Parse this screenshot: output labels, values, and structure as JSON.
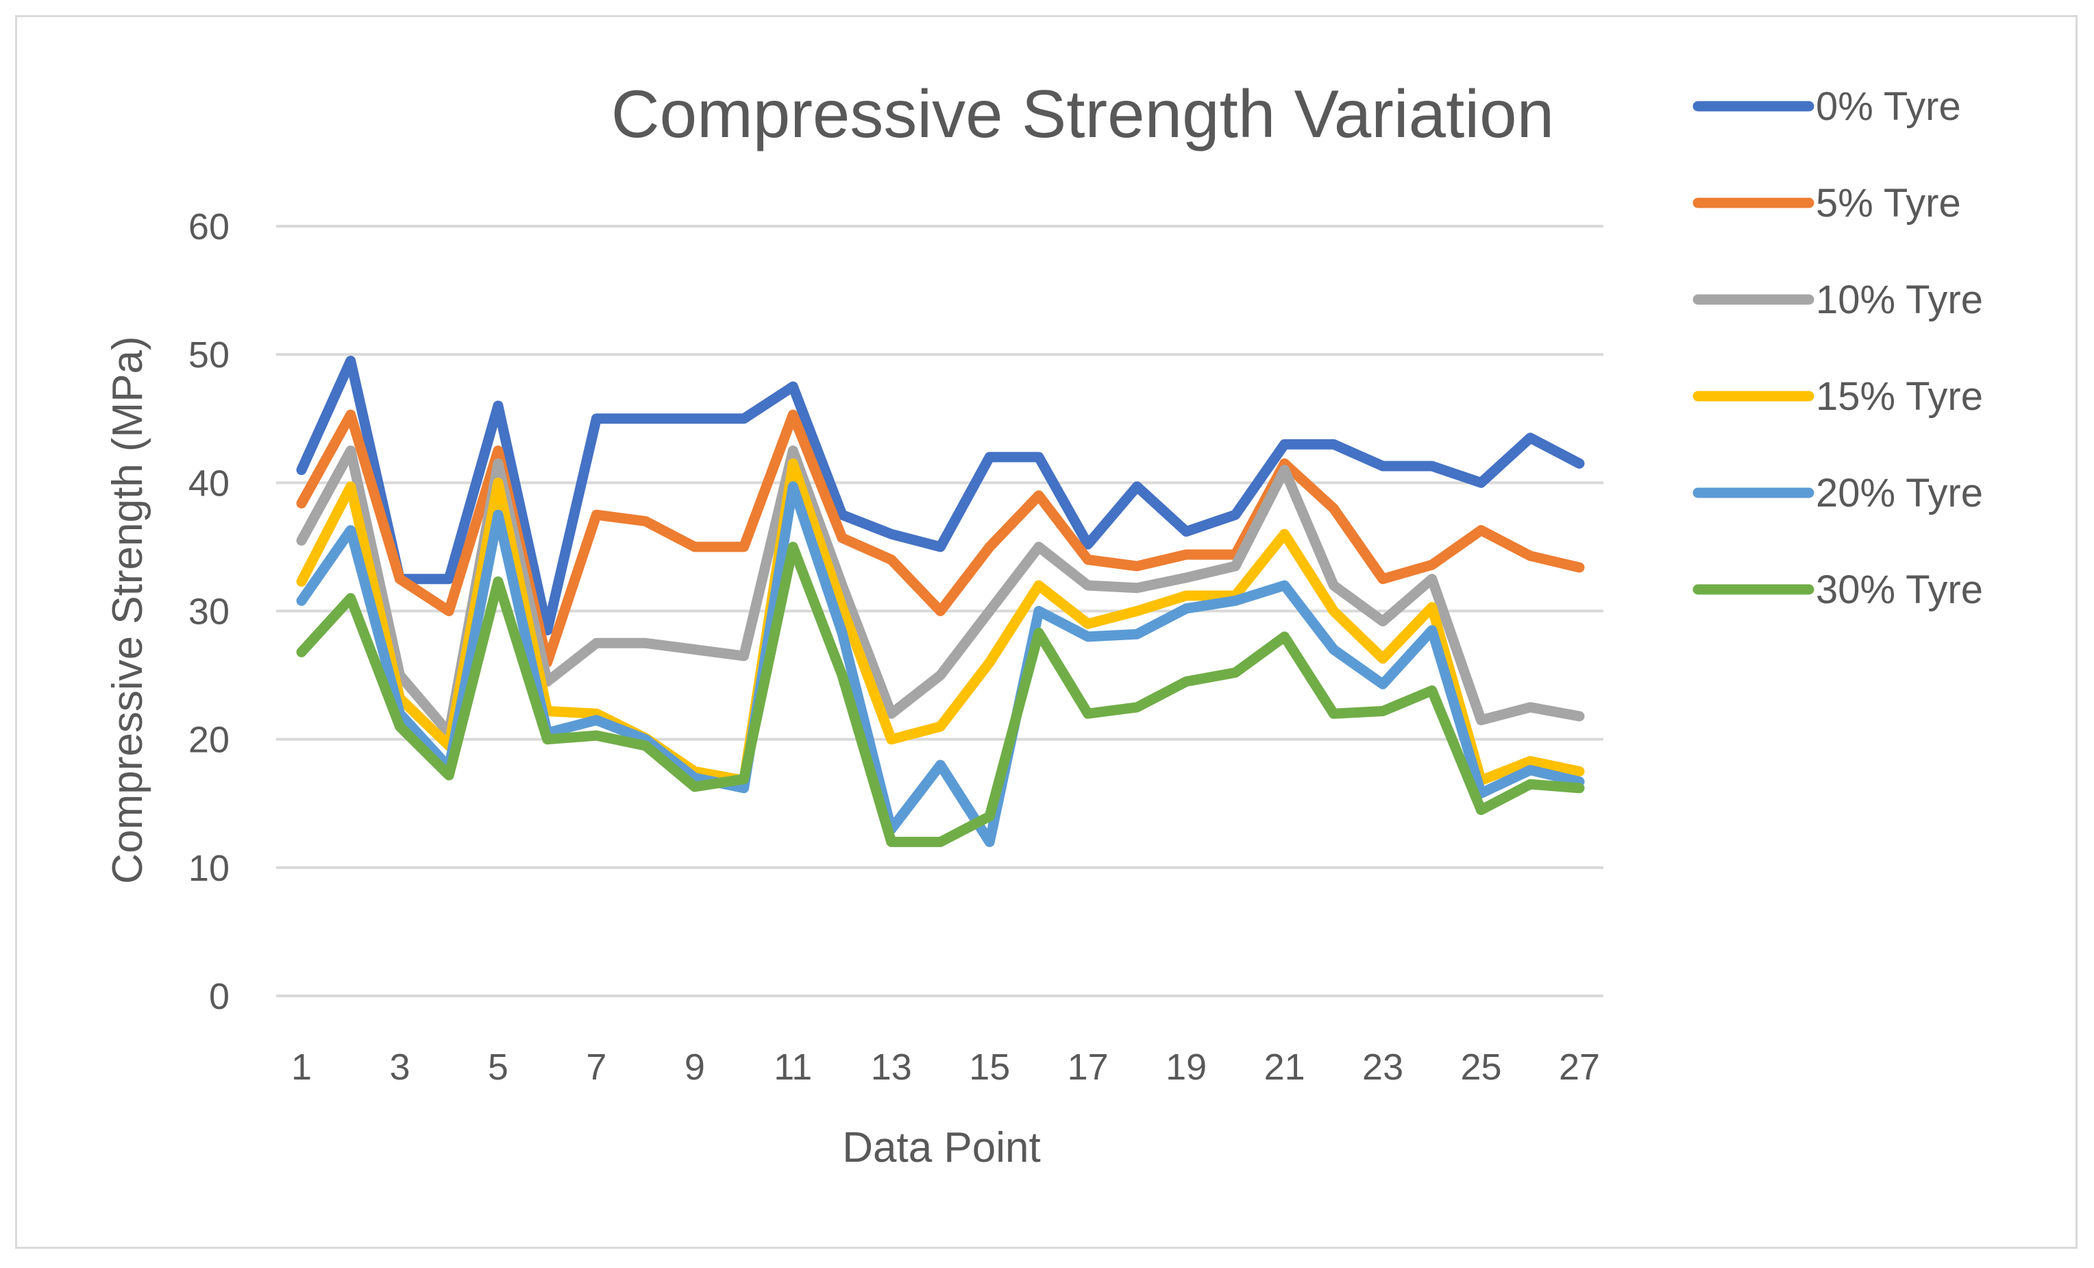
{
  "chart_data": {
    "type": "line",
    "title": "Compressive Strength Variation",
    "xlabel": "Data Point",
    "ylabel": "Compressive Strength (MPa)",
    "ylim": [
      0,
      60
    ],
    "yticks": [
      0,
      10,
      20,
      30,
      40,
      50,
      60
    ],
    "x": [
      1,
      2,
      3,
      4,
      5,
      6,
      7,
      8,
      9,
      10,
      11,
      12,
      13,
      14,
      15,
      16,
      17,
      18,
      19,
      20,
      21,
      22,
      23,
      24,
      25,
      26,
      27
    ],
    "xtick_labels": [
      "1",
      "3",
      "5",
      "7",
      "9",
      "11",
      "13",
      "15",
      "17",
      "19",
      "21",
      "23",
      "25",
      "27"
    ],
    "xtick_values": [
      1,
      3,
      5,
      7,
      9,
      11,
      13,
      15,
      17,
      19,
      21,
      23,
      25,
      27
    ],
    "grid": true,
    "legend_position": "right",
    "series": [
      {
        "name": "0% Tyre",
        "color": "#4472c4",
        "values": [
          41,
          49.5,
          32.5,
          32.5,
          46,
          28.5,
          45,
          45,
          45,
          45,
          47.5,
          37.5,
          36,
          35,
          42,
          42,
          35.2,
          39.7,
          36.2,
          37.5,
          43,
          43,
          41.3,
          41.3,
          40,
          43.5,
          41.5
        ]
      },
      {
        "name": "5% Tyre",
        "color": "#ed7d31",
        "values": [
          38.4,
          45.3,
          32.5,
          30,
          42.5,
          26,
          37.5,
          37,
          35,
          35,
          45.3,
          35.7,
          34,
          30,
          35,
          39,
          34,
          33.5,
          34.4,
          34.4,
          41.5,
          38,
          32.5,
          33.6,
          36.3,
          34.3,
          33.4
        ]
      },
      {
        "name": "10% Tyre",
        "color": "#a5a5a5",
        "values": [
          35.5,
          42.5,
          25,
          20.5,
          41.5,
          24.5,
          27.5,
          27.5,
          27,
          26.5,
          42.5,
          32,
          22,
          25,
          30,
          35,
          32,
          31.8,
          32.6,
          33.5,
          41,
          32,
          29.2,
          32.5,
          21.5,
          22.5,
          21.8
        ]
      },
      {
        "name": "15% Tyre",
        "color": "#ffc000",
        "values": [
          32.3,
          39.7,
          23.2,
          19.5,
          40,
          22.2,
          22,
          20.1,
          17.5,
          16.8,
          41.5,
          30.3,
          20,
          21,
          26,
          32,
          29,
          30,
          31.2,
          31.2,
          36,
          30,
          26.3,
          30.3,
          16.8,
          18.3,
          17.5
        ]
      },
      {
        "name": "20% Tyre",
        "color": "#5b9bd5",
        "values": [
          30.8,
          36.3,
          22,
          17.8,
          37.5,
          20.5,
          21.5,
          20,
          17,
          16.2,
          39.7,
          28.3,
          13,
          18,
          12,
          30,
          28,
          28.2,
          30.2,
          30.8,
          32,
          27,
          24.3,
          28.5,
          15.8,
          17.6,
          16.7
        ]
      },
      {
        "name": "30% Tyre",
        "color": "#70ad47",
        "values": [
          26.8,
          31,
          21,
          17.2,
          32.3,
          20,
          20.3,
          19.5,
          16.3,
          16.9,
          35,
          25,
          12,
          12,
          14,
          28.3,
          22,
          22.5,
          24.5,
          25.2,
          28,
          22,
          22.2,
          23.8,
          14.5,
          16.5,
          16.2
        ]
      }
    ]
  }
}
